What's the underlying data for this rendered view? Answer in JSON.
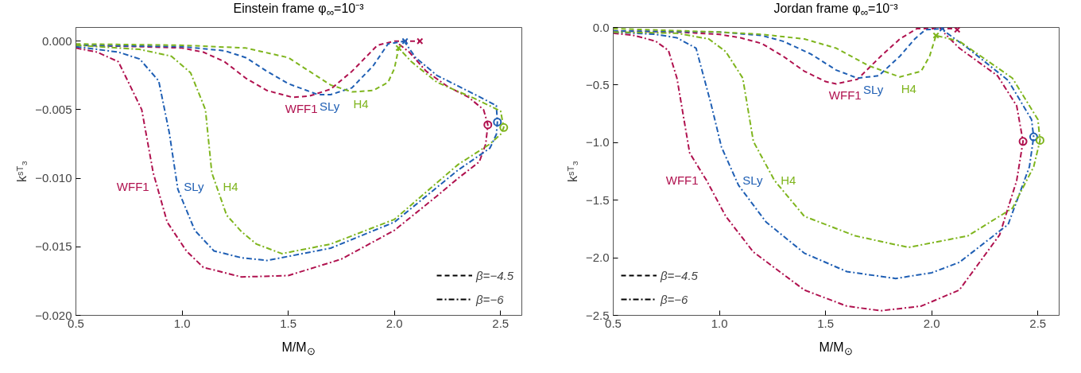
{
  "chart_data": [
    {
      "type": "line",
      "title": "Einstein frame φ$_{∞}$=10⁻³",
      "xlabel": "M/M$_{⊙}$",
      "ylabel": "kˢᵀ₃",
      "xlim": [
        0.5,
        2.6
      ],
      "ylim": [
        -0.02,
        0.001
      ],
      "xticks": [
        {
          "value": 0.5,
          "label": "0.5"
        },
        {
          "value": 1.0,
          "label": "1.0"
        },
        {
          "value": 1.5,
          "label": "1.5"
        },
        {
          "value": 2.0,
          "label": "2.0"
        },
        {
          "value": 2.5,
          "label": "2.5"
        }
      ],
      "yticks": [
        {
          "value": 0.0,
          "label": "0.000"
        },
        {
          "value": -0.005,
          "label": "−0.005"
        },
        {
          "value": -0.01,
          "label": "−0.010"
        },
        {
          "value": -0.015,
          "label": "−0.015"
        },
        {
          "value": -0.02,
          "label": "−0.020"
        }
      ],
      "grid": false,
      "legend": "bottom right",
      "series": [
        {
          "name": "WFF1",
          "color": "#b0124f",
          "line_style": "dashed",
          "x": [
            0.5,
            0.8,
            1.0,
            1.1,
            1.2,
            1.3,
            1.4,
            1.52,
            1.6,
            1.7,
            1.8,
            1.92,
            2.0,
            2.12
          ],
          "values": [
            -0.0003,
            -0.0004,
            -0.0005,
            -0.0008,
            -0.0015,
            -0.0027,
            -0.0036,
            -0.0041,
            -0.004,
            -0.0035,
            -0.0022,
            -0.0003,
            0.0,
            0.0
          ]
        },
        {
          "name": "SLy",
          "color": "#1f5fb4",
          "line_style": "dashed",
          "x": [
            0.5,
            1.0,
            1.2,
            1.3,
            1.4,
            1.5,
            1.64,
            1.7,
            1.8,
            1.9,
            1.97,
            2.05
          ],
          "values": [
            -0.0003,
            -0.0004,
            -0.0007,
            -0.0012,
            -0.0022,
            -0.0031,
            -0.0039,
            -0.0039,
            -0.0034,
            -0.0018,
            -0.0002,
            0.0
          ]
        },
        {
          "name": "H4",
          "color": "#7fb51e",
          "line_style": "dashed",
          "x": [
            0.5,
            1.0,
            1.3,
            1.5,
            1.6,
            1.7,
            1.8,
            1.9,
            1.97,
            2.0,
            2.02
          ],
          "values": [
            -0.0002,
            -0.0003,
            -0.0005,
            -0.0012,
            -0.0022,
            -0.0032,
            -0.0037,
            -0.0036,
            -0.003,
            -0.002,
            -0.0005
          ]
        },
        {
          "name": "WFF1",
          "color": "#b0124f",
          "line_style": "dashdot",
          "x": [
            0.5,
            0.6,
            0.7,
            0.76,
            0.81,
            0.864,
            0.93,
            1.02,
            1.1,
            1.28,
            1.5,
            1.75,
            2.0,
            2.2,
            2.3,
            2.4,
            2.43,
            2.44,
            2.42,
            2.35,
            2.25,
            2.15,
            2.07,
            2.02
          ],
          "values": [
            -0.0005,
            -0.0008,
            -0.0015,
            -0.0034,
            -0.005,
            -0.0096,
            -0.0132,
            -0.0153,
            -0.0165,
            -0.0172,
            -0.0171,
            -0.0159,
            -0.0138,
            -0.0113,
            -0.01,
            -0.0088,
            -0.0075,
            -0.0061,
            -0.005,
            -0.0041,
            -0.0033,
            -0.0022,
            -0.0008,
            -0.0002
          ]
        },
        {
          "name": "SLy",
          "color": "#1f5fb4",
          "line_style": "dashdot",
          "x": [
            0.5,
            0.7,
            0.8,
            0.89,
            0.94,
            0.98,
            1.06,
            1.15,
            1.28,
            1.4,
            1.7,
            2.0,
            2.3,
            2.45,
            2.48,
            2.485,
            2.48,
            2.38,
            2.2,
            2.1,
            2.05
          ],
          "values": [
            -0.0004,
            -0.0008,
            -0.0013,
            -0.0029,
            -0.0067,
            -0.0108,
            -0.0138,
            -0.0153,
            -0.0158,
            -0.016,
            -0.0151,
            -0.0132,
            -0.0094,
            -0.0078,
            -0.0068,
            -0.0059,
            -0.0047,
            -0.0039,
            -0.0025,
            -0.0012,
            -0.0001
          ]
        },
        {
          "name": "H4",
          "color": "#7fb51e",
          "line_style": "dashdot",
          "x": [
            0.5,
            0.8,
            0.95,
            1.04,
            1.11,
            1.14,
            1.21,
            1.28,
            1.35,
            1.47,
            1.7,
            2.0,
            2.3,
            2.45,
            2.5,
            2.515,
            2.5,
            2.38,
            2.2,
            2.08,
            2.02
          ],
          "values": [
            -0.0003,
            -0.0006,
            -0.0011,
            -0.0023,
            -0.005,
            -0.0096,
            -0.0127,
            -0.0139,
            -0.0148,
            -0.0155,
            -0.0148,
            -0.013,
            -0.009,
            -0.0075,
            -0.0068,
            -0.0063,
            -0.0051,
            -0.0042,
            -0.003,
            -0.0015,
            -0.0005
          ]
        },
        {
          "type": "scatter",
          "marker": "circle",
          "x": [
            2.44,
            2.485,
            2.515
          ],
          "values": [
            -0.0061,
            -0.0059,
            -0.0063
          ],
          "colors": [
            "#b0124f",
            "#1f5fb4",
            "#7fb51e"
          ]
        },
        {
          "type": "scatter",
          "marker": "cross",
          "x": [
            2.12,
            2.05,
            2.02
          ],
          "values": [
            0.0,
            0.0,
            -0.0005
          ],
          "colors": [
            "#b0124f",
            "#1f5fb4",
            "#7fb51e"
          ]
        },
        {
          "name": "β=−4.5",
          "color": "#000000",
          "line_style": "dashed"
        },
        {
          "name": "β=−6",
          "color": "#000000",
          "line_style": "dashdot"
        }
      ]
    },
    {
      "type": "line",
      "title": "Jordan frame φ$_{∞}$=10⁻³",
      "xlabel": "M/M$_{⊙}$",
      "ylabel": "kˢᵀ₃",
      "xlim": [
        0.5,
        2.6
      ],
      "ylim": [
        -2.5,
        0.0
      ],
      "xticks": [
        {
          "value": 0.5,
          "label": "0.5"
        },
        {
          "value": 1.0,
          "label": "1.0"
        },
        {
          "value": 1.5,
          "label": "1.5"
        },
        {
          "value": 2.0,
          "label": "2.0"
        },
        {
          "value": 2.5,
          "label": "2.5"
        }
      ],
      "yticks": [
        {
          "value": 0.0,
          "label": "0.0"
        },
        {
          "value": -0.5,
          "label": "−0.5"
        },
        {
          "value": -1.0,
          "label": "−1.0"
        },
        {
          "value": -1.5,
          "label": "−1.5"
        },
        {
          "value": -2.0,
          "label": "−2.0"
        },
        {
          "value": -2.5,
          "label": "−2.5"
        }
      ],
      "grid": false,
      "legend": "bottom left",
      "series": [
        {
          "name": "WFF1",
          "color": "#b0124f",
          "line_style": "dashed",
          "x": [
            0.5,
            0.8,
            1.0,
            1.1,
            1.2,
            1.3,
            1.4,
            1.5,
            1.55,
            1.65,
            1.76,
            1.85,
            1.93,
            2.12
          ],
          "values": [
            -0.03,
            -0.04,
            -0.06,
            -0.09,
            -0.14,
            -0.25,
            -0.38,
            -0.47,
            -0.49,
            -0.45,
            -0.25,
            -0.1,
            -0.01,
            -0.01
          ]
        },
        {
          "name": "SLy",
          "color": "#1f5fb4",
          "line_style": "dashed",
          "x": [
            0.5,
            1.0,
            1.2,
            1.3,
            1.43,
            1.55,
            1.65,
            1.75,
            1.85,
            1.92,
            1.97,
            2.05
          ],
          "values": [
            -0.03,
            -0.04,
            -0.07,
            -0.12,
            -0.23,
            -0.37,
            -0.44,
            -0.42,
            -0.25,
            -0.1,
            -0.02,
            -0.01
          ]
        },
        {
          "name": "H4",
          "color": "#7fb51e",
          "line_style": "dashed",
          "x": [
            0.5,
            1.0,
            1.2,
            1.4,
            1.55,
            1.7,
            1.85,
            1.95,
            1.99,
            2.02
          ],
          "values": [
            -0.01,
            -0.04,
            -0.06,
            -0.1,
            -0.18,
            -0.33,
            -0.43,
            -0.38,
            -0.25,
            -0.07
          ]
        },
        {
          "name": "WFF1",
          "color": "#b0124f",
          "line_style": "dashdot",
          "x": [
            0.5,
            0.6,
            0.7,
            0.76,
            0.8,
            0.86,
            0.94,
            1.03,
            1.16,
            1.4,
            1.6,
            1.76,
            1.95,
            2.13,
            2.32,
            2.4,
            2.43,
            2.4,
            2.31,
            2.13,
            2.06
          ],
          "values": [
            -0.05,
            -0.07,
            -0.12,
            -0.2,
            -0.44,
            -1.09,
            -1.33,
            -1.64,
            -1.95,
            -2.28,
            -2.42,
            -2.46,
            -2.42,
            -2.28,
            -1.8,
            -1.33,
            -0.99,
            -0.68,
            -0.42,
            -0.18,
            -0.05
          ]
        },
        {
          "name": "SLy",
          "color": "#1f5fb4",
          "line_style": "dashdot",
          "x": [
            0.5,
            0.7,
            0.8,
            0.89,
            0.96,
            1.01,
            1.09,
            1.22,
            1.4,
            1.6,
            1.83,
            2.0,
            2.13,
            2.36,
            2.46,
            2.48,
            2.47,
            2.36,
            2.17,
            2.05
          ],
          "values": [
            -0.04,
            -0.06,
            -0.09,
            -0.18,
            -0.66,
            -1.04,
            -1.37,
            -1.69,
            -1.96,
            -2.12,
            -2.18,
            -2.13,
            -2.04,
            -1.71,
            -1.21,
            -0.95,
            -0.8,
            -0.46,
            -0.18,
            -0.02
          ]
        },
        {
          "name": "H4",
          "color": "#7fb51e",
          "line_style": "dashdot",
          "x": [
            0.5,
            0.8,
            0.95,
            1.03,
            1.11,
            1.16,
            1.26,
            1.4,
            1.64,
            1.89,
            2.17,
            2.38,
            2.48,
            2.51,
            2.5,
            2.38,
            2.13,
            2.02
          ],
          "values": [
            -0.04,
            -0.05,
            -0.1,
            -0.21,
            -0.44,
            -0.99,
            -1.33,
            -1.64,
            -1.81,
            -1.91,
            -1.81,
            -1.57,
            -1.21,
            -0.98,
            -0.8,
            -0.44,
            -0.12,
            -0.07
          ]
        },
        {
          "type": "scatter",
          "marker": "circle",
          "x": [
            2.43,
            2.48,
            2.51
          ],
          "values": [
            -0.99,
            -0.95,
            -0.98
          ],
          "colors": [
            "#b0124f",
            "#1f5fb4",
            "#7fb51e"
          ]
        },
        {
          "type": "scatter",
          "marker": "cross",
          "x": [
            2.12,
            2.05,
            2.02
          ],
          "values": [
            -0.02,
            -0.01,
            -0.07
          ],
          "colors": [
            "#b0124f",
            "#1f5fb4",
            "#7fb51e"
          ]
        },
        {
          "name": "β=−4.5",
          "color": "#000000",
          "line_style": "dashed"
        },
        {
          "name": "β=−6",
          "color": "#000000",
          "line_style": "dashdot"
        }
      ]
    }
  ]
}
